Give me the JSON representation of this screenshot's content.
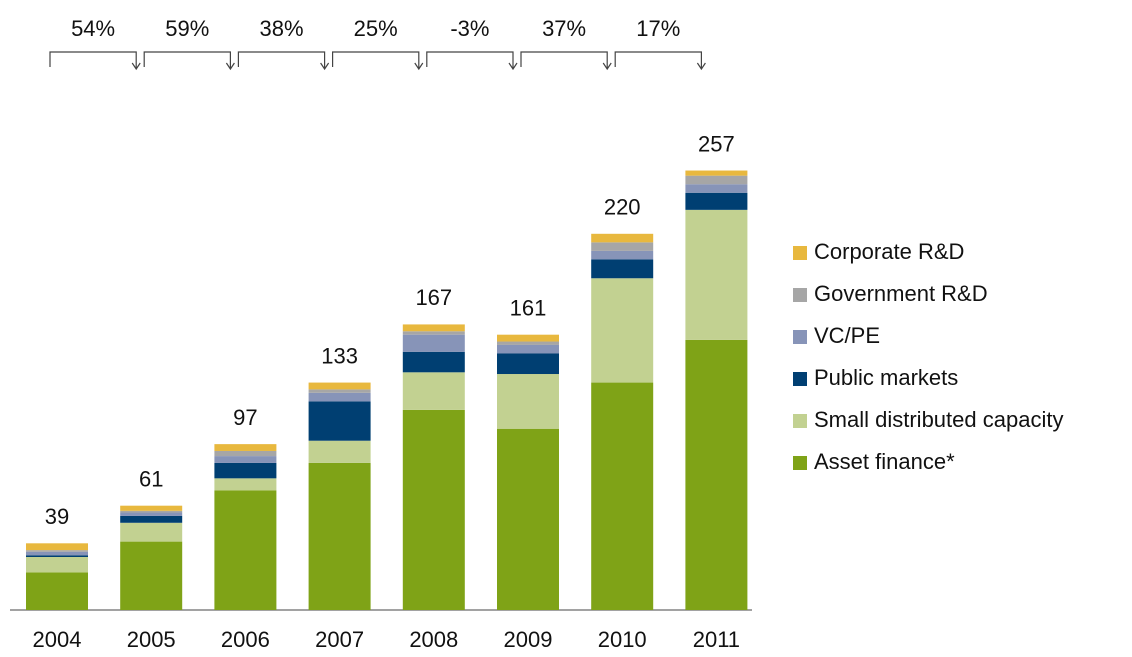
{
  "chart_data": {
    "type": "stacked-bar",
    "categories": [
      "2004",
      "2005",
      "2006",
      "2007",
      "2008",
      "2009",
      "2010",
      "2011"
    ],
    "series": [
      {
        "name": "Asset finance*",
        "color": "#7fa317",
        "values": [
          22,
          40,
          70,
          86,
          117,
          106,
          133,
          158
        ]
      },
      {
        "name": "Small distributed capacity",
        "color": "#c2d191",
        "values": [
          9,
          11,
          7,
          13,
          22,
          32,
          61,
          76
        ]
      },
      {
        "name": "Public markets",
        "color": "#003f72",
        "values": [
          1,
          4,
          9,
          23,
          12,
          12,
          11,
          10
        ]
      },
      {
        "name": "VC/PE",
        "color": "#8794b8",
        "values": [
          2,
          2,
          4,
          5,
          10,
          5,
          5,
          5
        ]
      },
      {
        "name": "Government R&D",
        "color": "#a6a6a6",
        "values": [
          1,
          1,
          3,
          2,
          2,
          2,
          5,
          5
        ]
      },
      {
        "name": "Corporate R&D",
        "color": "#e8b83e",
        "values": [
          4,
          3,
          4,
          4,
          4,
          4,
          5,
          3
        ]
      }
    ],
    "totals": [
      39,
      61,
      97,
      133,
      167,
      161,
      220,
      257
    ],
    "growth": [
      {
        "value": 54,
        "label": "54%"
      },
      {
        "value": 59,
        "label": "59%"
      },
      {
        "value": 38,
        "label": "38%"
      },
      {
        "value": 25,
        "label": "25%"
      },
      {
        "value": -3,
        "label": "-3%"
      },
      {
        "value": 37,
        "label": "37%"
      },
      {
        "value": 17,
        "label": "17%"
      }
    ],
    "ylim": [
      0,
      300
    ],
    "legend": "right"
  }
}
